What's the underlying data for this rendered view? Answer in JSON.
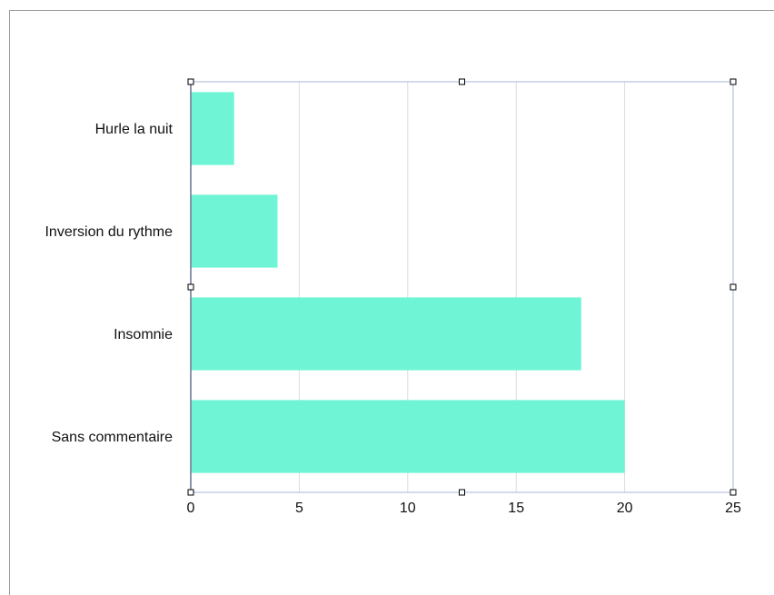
{
  "chart_data": {
    "type": "bar",
    "orientation": "horizontal",
    "categories": [
      "Hurle la nuit",
      "Inversion du rythme",
      "Insomnie",
      "Sans commentaire"
    ],
    "values": [
      2,
      4,
      18,
      20
    ],
    "xlim": [
      0,
      25
    ],
    "xticks": [
      0,
      5,
      10,
      15,
      20,
      25
    ],
    "grid": "vertical",
    "legend": "none",
    "selected": true,
    "colors": {
      "bar": "#6ff5d5",
      "grid": "#dcdcdc",
      "axis": "#1a1a1a",
      "selection": "#a8b6dc",
      "handle": "#000000"
    }
  }
}
